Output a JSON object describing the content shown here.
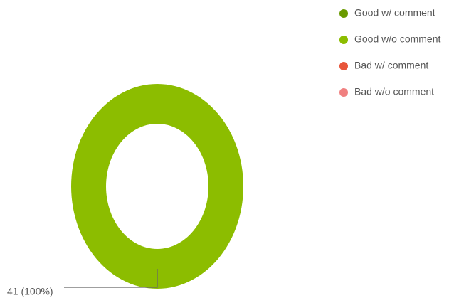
{
  "chart_data": {
    "type": "donut",
    "categories": [
      "Good w/ comment",
      "Good w/o comment",
      "Bad w/ comment",
      "Bad w/o comment"
    ],
    "values": [
      0,
      41,
      0,
      0
    ],
    "value_labels": [
      null,
      "41 (100%)",
      null,
      null
    ],
    "colors": [
      "#6a9a00",
      "#8cbd00",
      "#e8553a",
      "#f08080"
    ],
    "legend": "top-right"
  }
}
